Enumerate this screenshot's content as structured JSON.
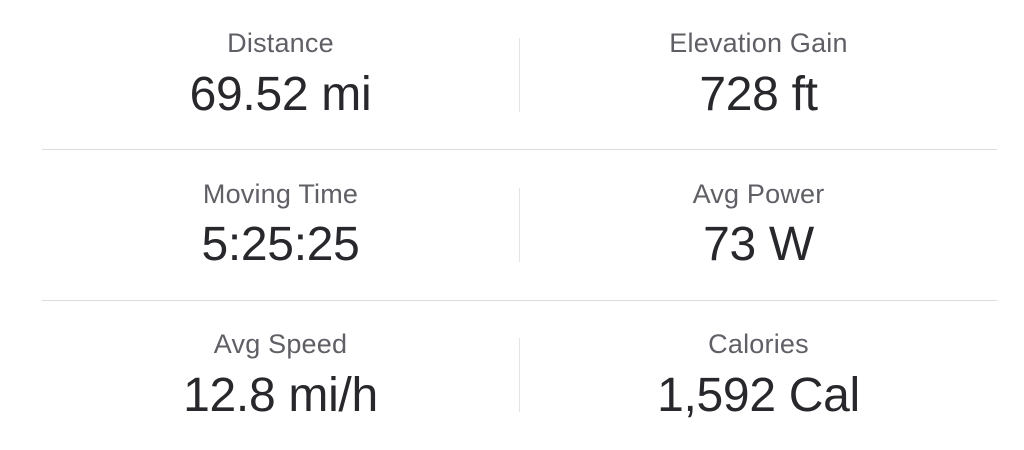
{
  "panel": {
    "background": "#ffffff"
  },
  "colors": {
    "label_text": "#5f5f66",
    "value_text": "#28282c",
    "row_divider": "#dcdcdf",
    "column_divider": "#e4e4e7"
  },
  "stats": {
    "rows": [
      {
        "left": {
          "label": "Distance",
          "value": "69.52 mi"
        },
        "right": {
          "label": "Elevation Gain",
          "value": "728 ft"
        }
      },
      {
        "left": {
          "label": "Moving Time",
          "value": "5:25:25"
        },
        "right": {
          "label": "Avg Power",
          "value": "73 W"
        }
      },
      {
        "left": {
          "label": "Avg Speed",
          "value": "12.8 mi/h"
        },
        "right": {
          "label": "Calories",
          "value": "1,592 Cal"
        }
      }
    ]
  }
}
